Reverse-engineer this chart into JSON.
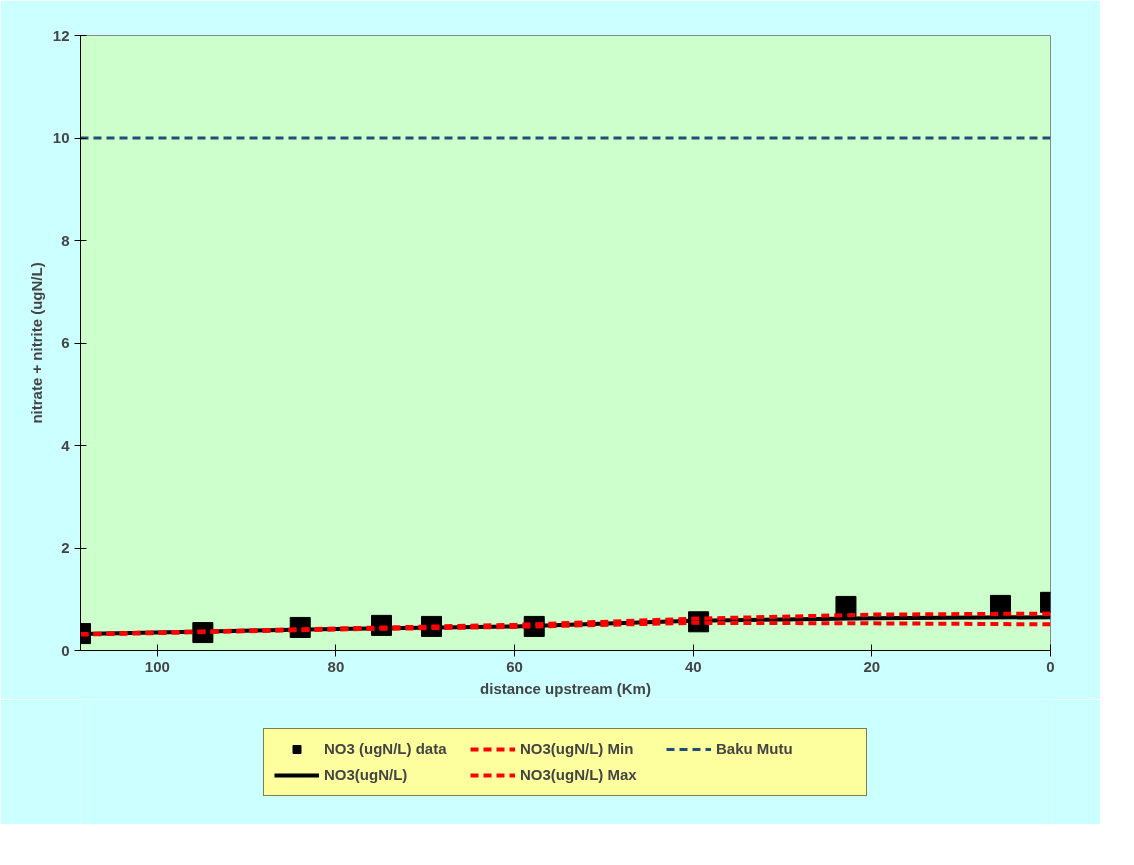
{
  "chart_data": {
    "type": "line",
    "xlabel": "distance upstream (Km)",
    "ylabel": "nitrate + nitrite (ugN/L)",
    "xlim": [
      108.6,
      0
    ],
    "xticks": [
      100,
      80,
      60,
      40,
      20,
      0
    ],
    "ylim": [
      0,
      12
    ],
    "yticks": [
      0,
      2,
      4,
      6,
      8,
      10,
      12
    ],
    "grid": false,
    "legend": "bottom",
    "series": [
      {
        "name": "NO3 (ugN/L) data",
        "type": "scatter",
        "marker": "square",
        "color": "#000000",
        "x": [
          108.6,
          94.9,
          84.0,
          74.9,
          69.3,
          57.8,
          39.4,
          22.9,
          5.6,
          0
        ],
        "values": [
          0.33,
          0.35,
          0.45,
          0.49,
          0.47,
          0.47,
          0.56,
          0.86,
          0.88,
          0.94
        ]
      },
      {
        "name": "NO3(ugN/L)",
        "type": "line",
        "line_style": "solid",
        "color": "#000000",
        "x": [
          108.6,
          80,
          60,
          40,
          20,
          0
        ],
        "values": [
          0.32,
          0.42,
          0.47,
          0.58,
          0.63,
          0.65
        ]
      },
      {
        "name": "NO3(ugN/L) Min",
        "type": "line",
        "line_style": "dashed",
        "color": "#ff0000",
        "x": [
          108.6,
          80,
          60,
          40,
          20,
          0
        ],
        "values": [
          0.31,
          0.41,
          0.46,
          0.54,
          0.53,
          0.51
        ]
      },
      {
        "name": "NO3(ugN/L) Max",
        "type": "line",
        "line_style": "dashed",
        "color": "#ff0000",
        "x": [
          108.6,
          80,
          60,
          40,
          20,
          0
        ],
        "values": [
          0.32,
          0.43,
          0.5,
          0.62,
          0.7,
          0.72
        ]
      }
    ],
    "ref_lines": [
      {
        "axis": "y",
        "value": 10,
        "label": "Baku Mutu",
        "color": "#1f4e79",
        "line_style": "dashed"
      }
    ]
  }
}
